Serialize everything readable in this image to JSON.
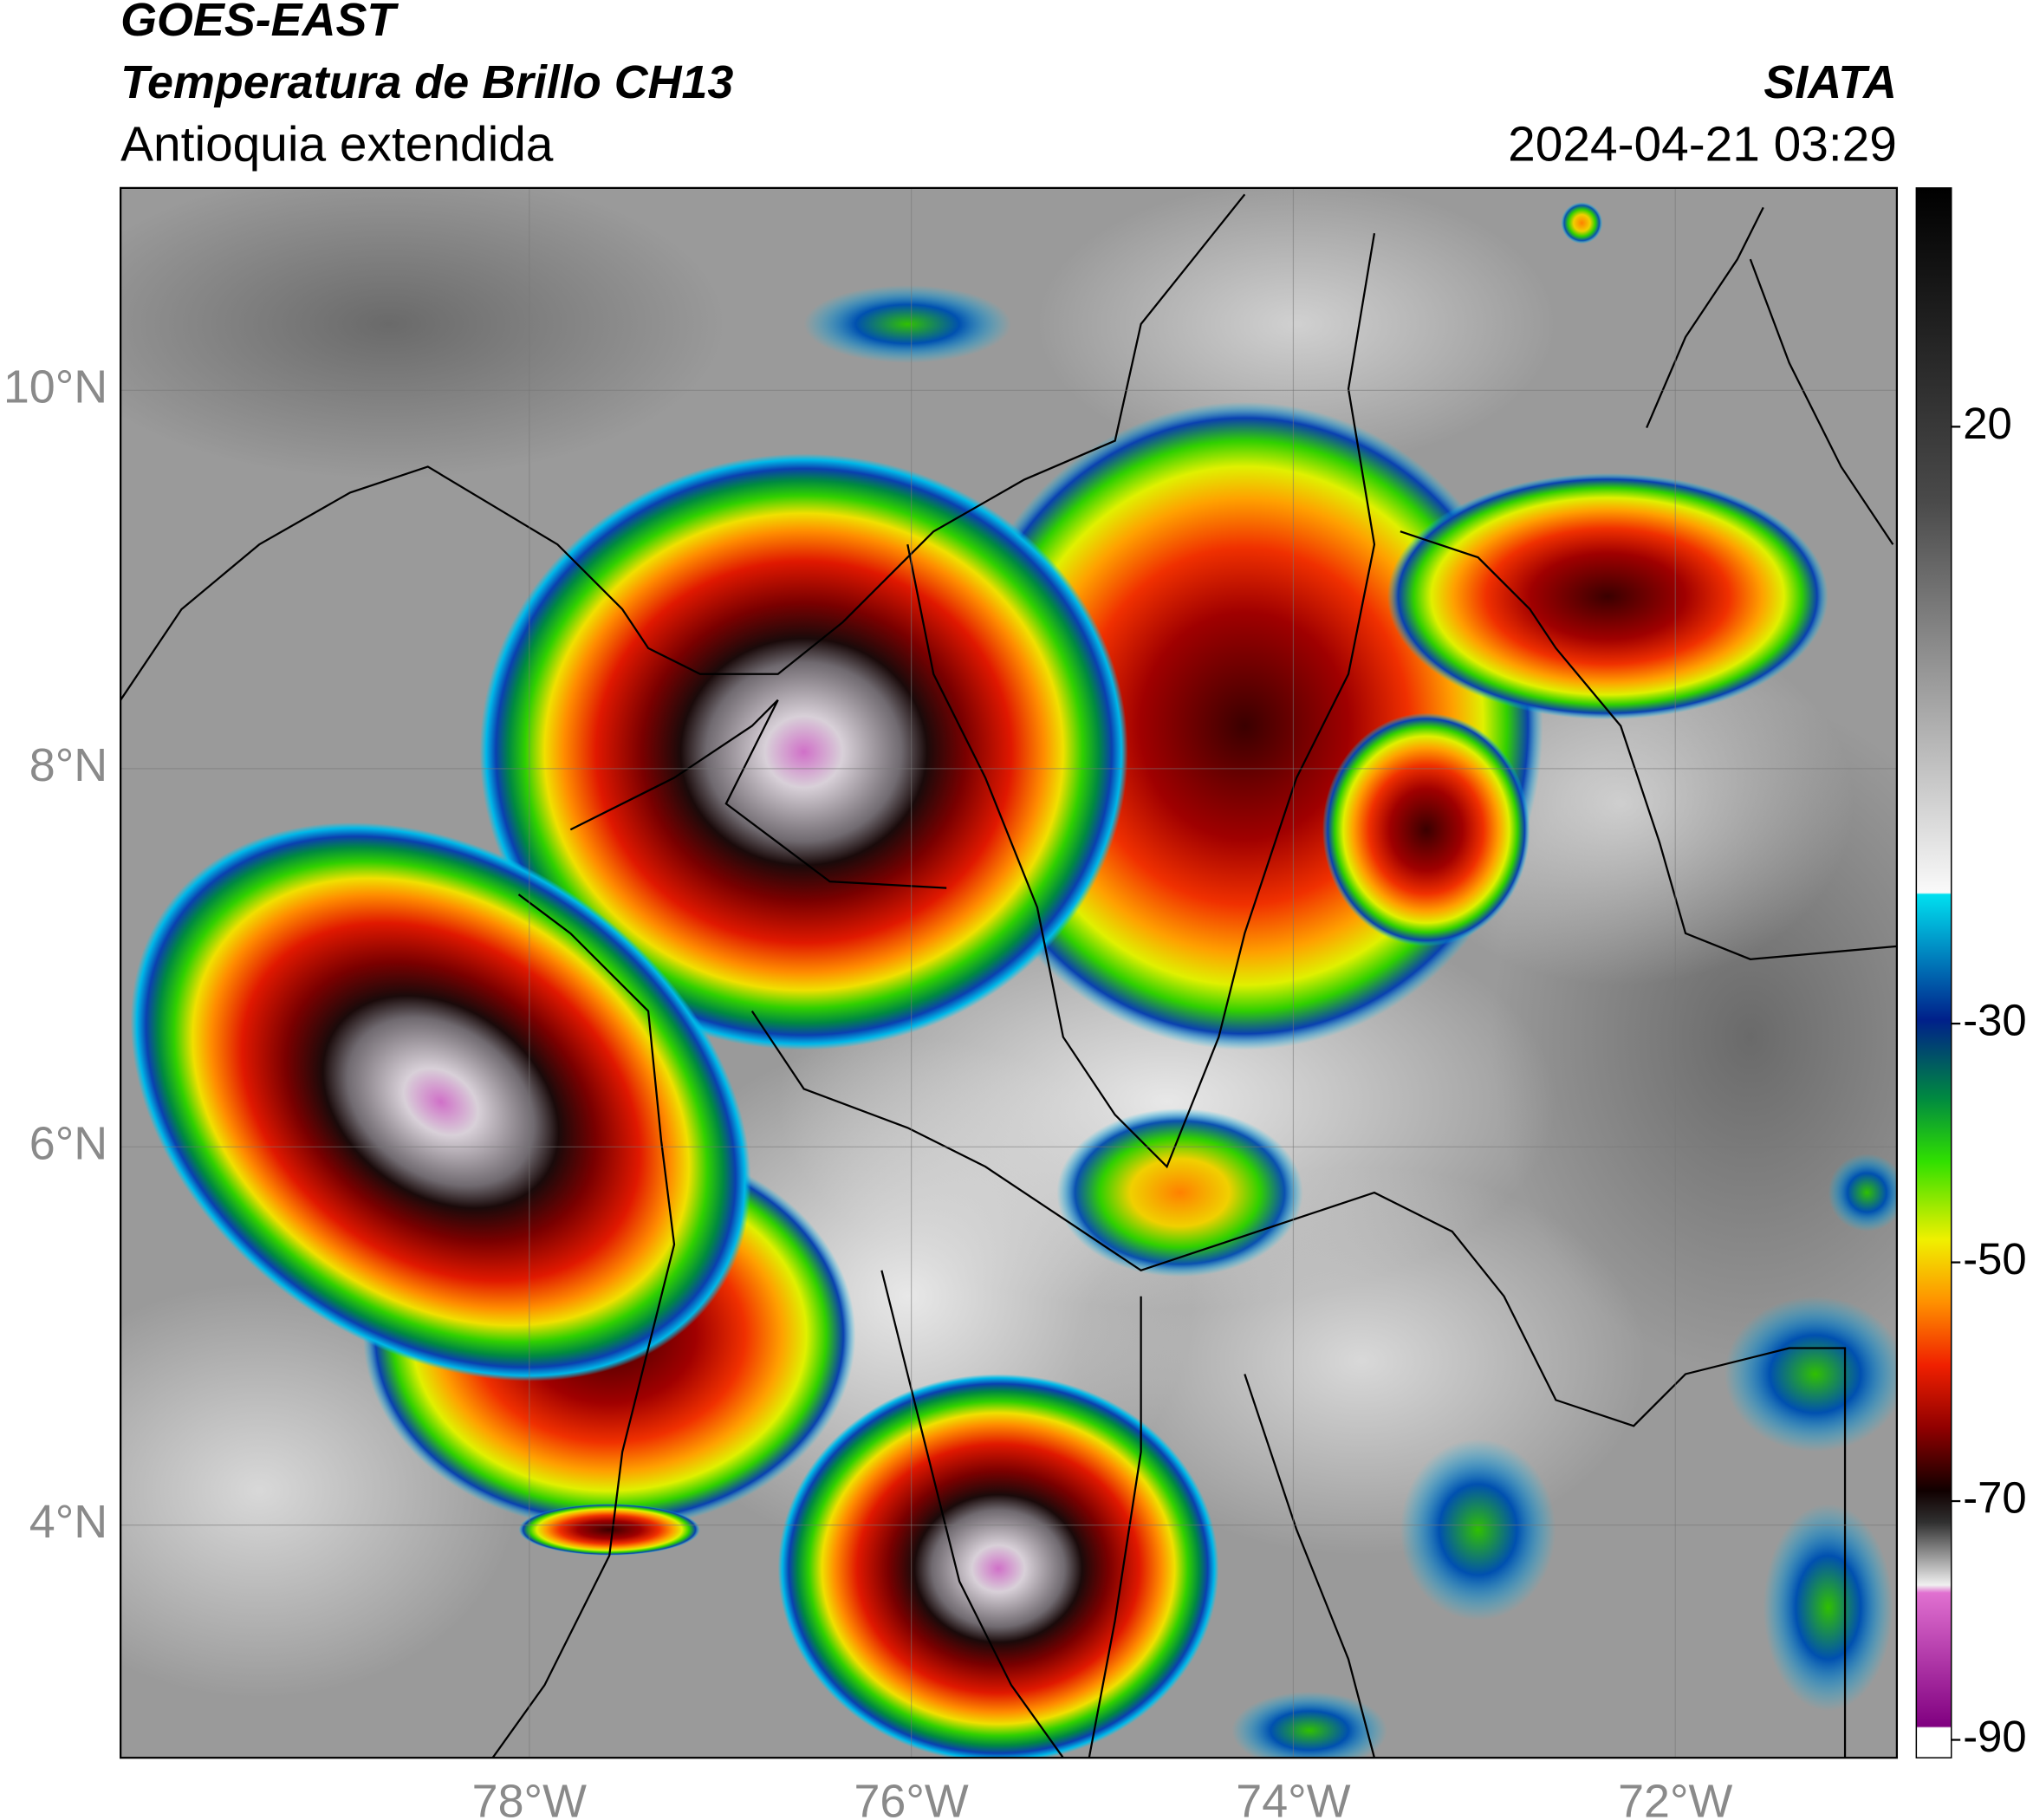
{
  "header": {
    "title": "GOES-EAST",
    "product": "Temperatura de Brillo CH13",
    "region": "Antioquia extendida",
    "agency": "SIATA",
    "datetime": "2024-04-21 03:29"
  },
  "map": {
    "xlim": [
      -80.14,
      -70.84
    ],
    "ylim": [
      2.77,
      11.07
    ],
    "xticks": [
      {
        "value": -78,
        "label": "78°W"
      },
      {
        "value": -76,
        "label": "76°W"
      },
      {
        "value": -74,
        "label": "74°W"
      },
      {
        "value": -72,
        "label": "72°W"
      }
    ],
    "yticks": [
      {
        "value": 10,
        "label": "10°N"
      },
      {
        "value": 8,
        "label": "8°N"
      },
      {
        "value": 6,
        "label": "6°N"
      },
      {
        "value": 4,
        "label": "4°N"
      }
    ],
    "grid": true
  },
  "colorbar": {
    "lim": [
      -91.5,
      40
    ],
    "ticks": [
      20,
      -30,
      -50,
      -70,
      -90
    ]
  }
}
